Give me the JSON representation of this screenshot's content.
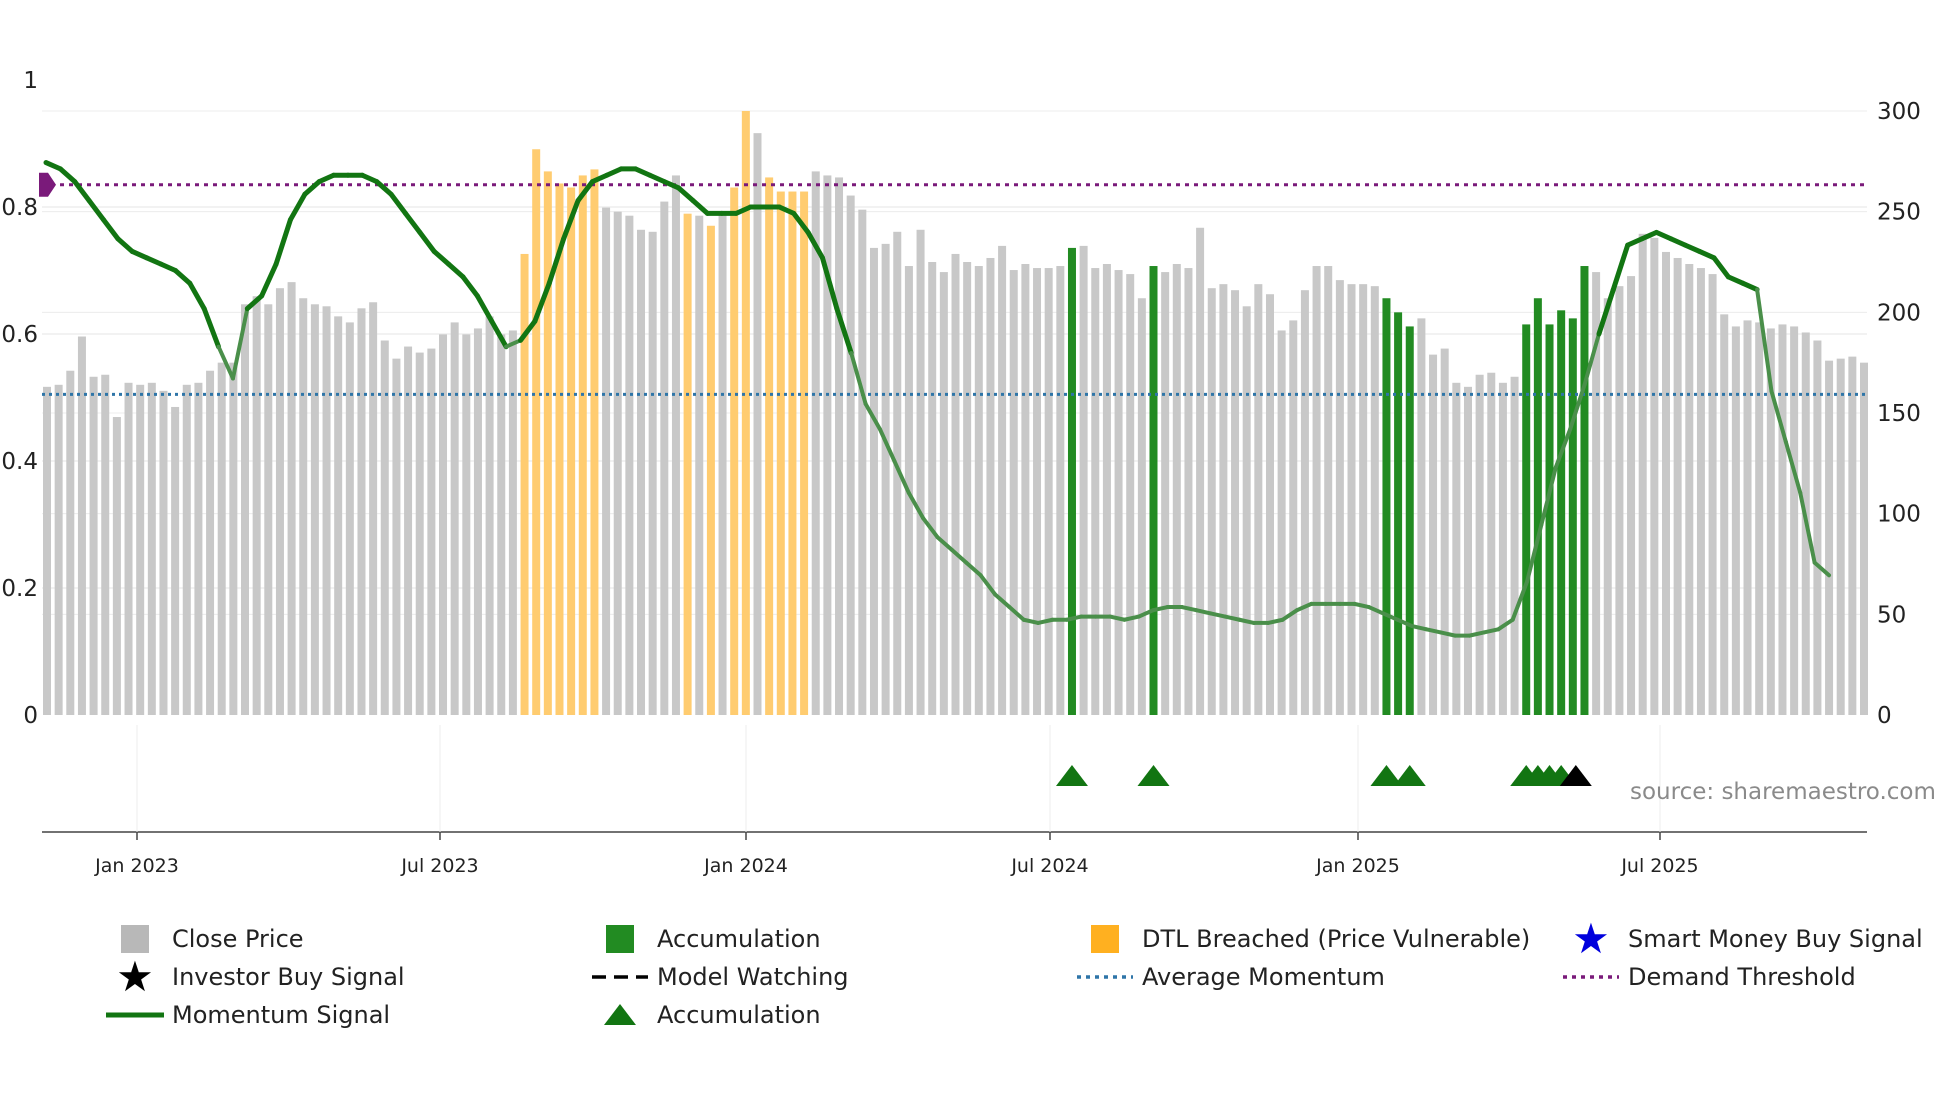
{
  "chart_data": {
    "type": "bar",
    "source": "source: sharemaestro.com",
    "left_axis": {
      "ticks": [
        "1",
        "0.8",
        "0.6",
        "0.4",
        "0.2",
        "0"
      ],
      "range": [
        0,
        1
      ]
    },
    "right_axis": {
      "ticks": [
        "300",
        "250",
        "200",
        "150",
        "100",
        "50",
        "0"
      ],
      "range": [
        0,
        300
      ]
    },
    "x_ticks": [
      "Jan 2023",
      "Jul 2023",
      "Jan 2024",
      "Jul 2024",
      "Jan 2025",
      "Jul 2025"
    ],
    "average_momentum": 0.505,
    "demand_threshold": 0.835,
    "close_price_colors": {
      "grey": "#c8c8c8",
      "accumulation": "#228b22",
      "dtl": "#ffcc70"
    },
    "close_prices": [
      163,
      164,
      171,
      188,
      168,
      169,
      148,
      165,
      164,
      165,
      161,
      153,
      164,
      165,
      171,
      175,
      175,
      204,
      208,
      204,
      212,
      215,
      207,
      204,
      203,
      198,
      195,
      202,
      205,
      186,
      177,
      183,
      180,
      182,
      189,
      195,
      189,
      192,
      198,
      189,
      191,
      229,
      281,
      270,
      264,
      262,
      268,
      271,
      252,
      250,
      248,
      241,
      240,
      255,
      268,
      249,
      248,
      243,
      249,
      262,
      300,
      289,
      267,
      260,
      260,
      260,
      270,
      268,
      267,
      258,
      251,
      232,
      234,
      240,
      223,
      241,
      225,
      220,
      229,
      225,
      223,
      227,
      233,
      221,
      224,
      222,
      222,
      223,
      232,
      233,
      222,
      224,
      221,
      219,
      207,
      223,
      220,
      224,
      222,
      242,
      212,
      214,
      211,
      203,
      214,
      209,
      191,
      196,
      211,
      223,
      223,
      216,
      214,
      214,
      213,
      207,
      200,
      193,
      197,
      179,
      182,
      165,
      163,
      169,
      170,
      165,
      168,
      194,
      207,
      194,
      201,
      197,
      223,
      220,
      207,
      213,
      218,
      239,
      237,
      230,
      227,
      224,
      222,
      219,
      199,
      193,
      196,
      195,
      192,
      194,
      193,
      190,
      186,
      176,
      177,
      178,
      175
    ],
    "accumulation_bars": [
      88,
      95,
      115,
      116,
      117,
      127,
      128,
      129,
      130,
      131,
      132
    ],
    "dtl_bars": [
      41,
      42,
      43,
      44,
      45,
      46,
      47,
      55,
      57,
      59,
      60,
      62,
      63,
      64,
      65
    ],
    "momentum_signal": [
      0.87,
      0.86,
      0.84,
      0.81,
      0.78,
      0.75,
      0.73,
      0.72,
      0.71,
      0.7,
      0.68,
      0.64,
      0.58,
      0.53,
      0.64,
      0.66,
      0.71,
      0.78,
      0.82,
      0.84,
      0.85,
      0.85,
      0.85,
      0.84,
      0.82,
      0.79,
      0.76,
      0.73,
      0.71,
      0.69,
      0.66,
      0.62,
      0.58,
      0.59,
      0.62,
      0.68,
      0.75,
      0.81,
      0.84,
      0.85,
      0.86,
      0.86,
      0.85,
      0.84,
      0.83,
      0.81,
      0.79,
      0.79,
      0.79,
      0.8,
      0.8,
      0.8,
      0.79,
      0.76,
      0.72,
      0.64,
      0.57,
      0.49,
      0.45,
      0.4,
      0.35,
      0.31,
      0.28,
      0.26,
      0.24,
      0.22,
      0.19,
      0.17,
      0.15,
      0.145,
      0.15,
      0.15,
      0.155,
      0.155,
      0.155,
      0.15,
      0.155,
      0.165,
      0.17,
      0.17,
      0.165,
      0.16,
      0.155,
      0.15,
      0.145,
      0.145,
      0.15,
      0.165,
      0.175,
      0.175,
      0.175,
      0.175,
      0.17,
      0.16,
      0.15,
      0.14,
      0.135,
      0.13,
      0.125,
      0.125,
      0.13,
      0.135,
      0.15,
      0.21,
      0.3,
      0.39,
      0.45,
      0.52,
      0.6,
      0.67,
      0.74,
      0.75,
      0.76,
      0.75,
      0.74,
      0.73,
      0.72,
      0.69,
      0.68,
      0.67,
      0.51,
      0.43,
      0.35,
      0.24,
      0.22
    ],
    "accumulation_markers": [
      88,
      95,
      115,
      117,
      127,
      128,
      129,
      130
    ],
    "investor_buy_markers": [
      131
    ],
    "legend": [
      {
        "label": "Close Price",
        "symbol": "grey-square",
        "color": "#b8b8b8"
      },
      {
        "label": "Accumulation",
        "symbol": "green-square",
        "color": "#228b22"
      },
      {
        "label": "DTL Breached (Price Vulnerable)",
        "symbol": "orange-square",
        "color": "#ffb020"
      },
      {
        "label": "Smart Money Buy Signal",
        "symbol": "blue-star",
        "color": "#0000dd"
      },
      {
        "label": "Investor Buy Signal",
        "symbol": "black-star",
        "color": "#000000"
      },
      {
        "label": "Model Watching",
        "symbol": "black-dashed-line",
        "color": "#000000"
      },
      {
        "label": "Average Momentum",
        "symbol": "blue-dotted-line",
        "color": "#2e75a8"
      },
      {
        "label": "Demand Threshold",
        "symbol": "purple-dotted-line",
        "color": "#7a1a7a"
      },
      {
        "label": "Momentum Signal",
        "symbol": "green-line",
        "color": "#127512"
      },
      {
        "label": "Accumulation",
        "symbol": "green-triangle",
        "color": "#127512"
      }
    ]
  }
}
